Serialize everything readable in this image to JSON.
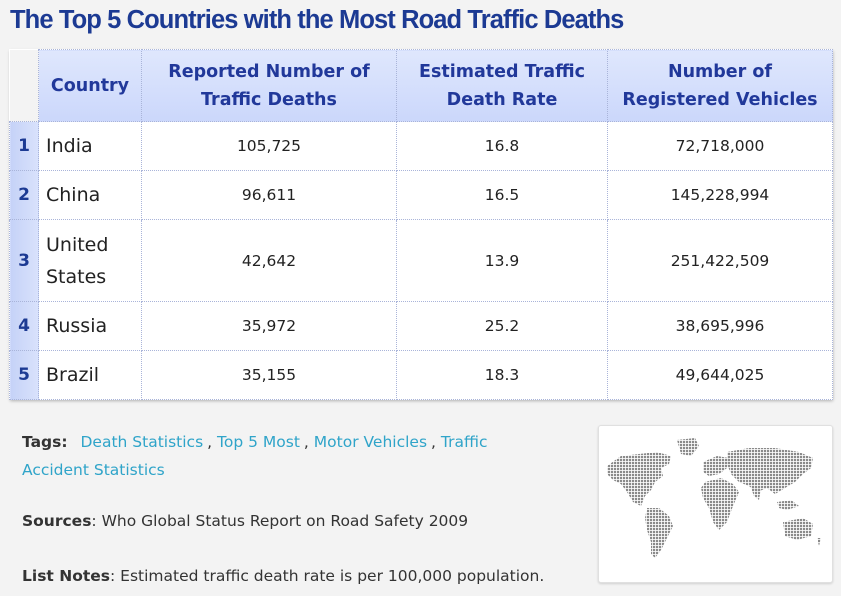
{
  "title": "The Top 5 Countries with the Most Road Traffic Deaths",
  "table": {
    "headers": {
      "country": "Country",
      "deaths": "Reported Number of Traffic Deaths",
      "rate": "Estimated Traffic Death Rate",
      "vehicles": "Number of Registered Vehicles"
    },
    "rows": [
      {
        "rank": "1",
        "country": "India",
        "deaths": "105,725",
        "rate": "16.8",
        "vehicles": "72,718,000"
      },
      {
        "rank": "2",
        "country": "China",
        "deaths": "96,611",
        "rate": "16.5",
        "vehicles": "145,228,994"
      },
      {
        "rank": "3",
        "country": "United States",
        "deaths": "42,642",
        "rate": "13.9",
        "vehicles": "251,422,509"
      },
      {
        "rank": "4",
        "country": "Russia",
        "deaths": "35,972",
        "rate": "25.2",
        "vehicles": "38,695,996"
      },
      {
        "rank": "5",
        "country": "Brazil",
        "deaths": "35,155",
        "rate": "18.3",
        "vehicles": "49,644,025"
      }
    ]
  },
  "tags": {
    "label": "Tags:",
    "items": [
      "Death Statistics",
      "Top 5 Most",
      "Motor Vehicles",
      "Traffic Accident Statistics"
    ],
    "separator": ","
  },
  "sources": {
    "label": "Sources",
    "text": "Who Global Status Report on Road Safety 2009"
  },
  "notes": {
    "label": "List Notes",
    "text": "Estimated traffic death rate is per 100,000 population."
  },
  "map": {
    "icon": "world-map-icon",
    "color": "#8a8a8a"
  },
  "colors": {
    "title": "#1c3a93",
    "header_bg": "#d3ddfb",
    "rank_bg": "#cdd8f9",
    "tag_link": "#2fa4c9"
  }
}
